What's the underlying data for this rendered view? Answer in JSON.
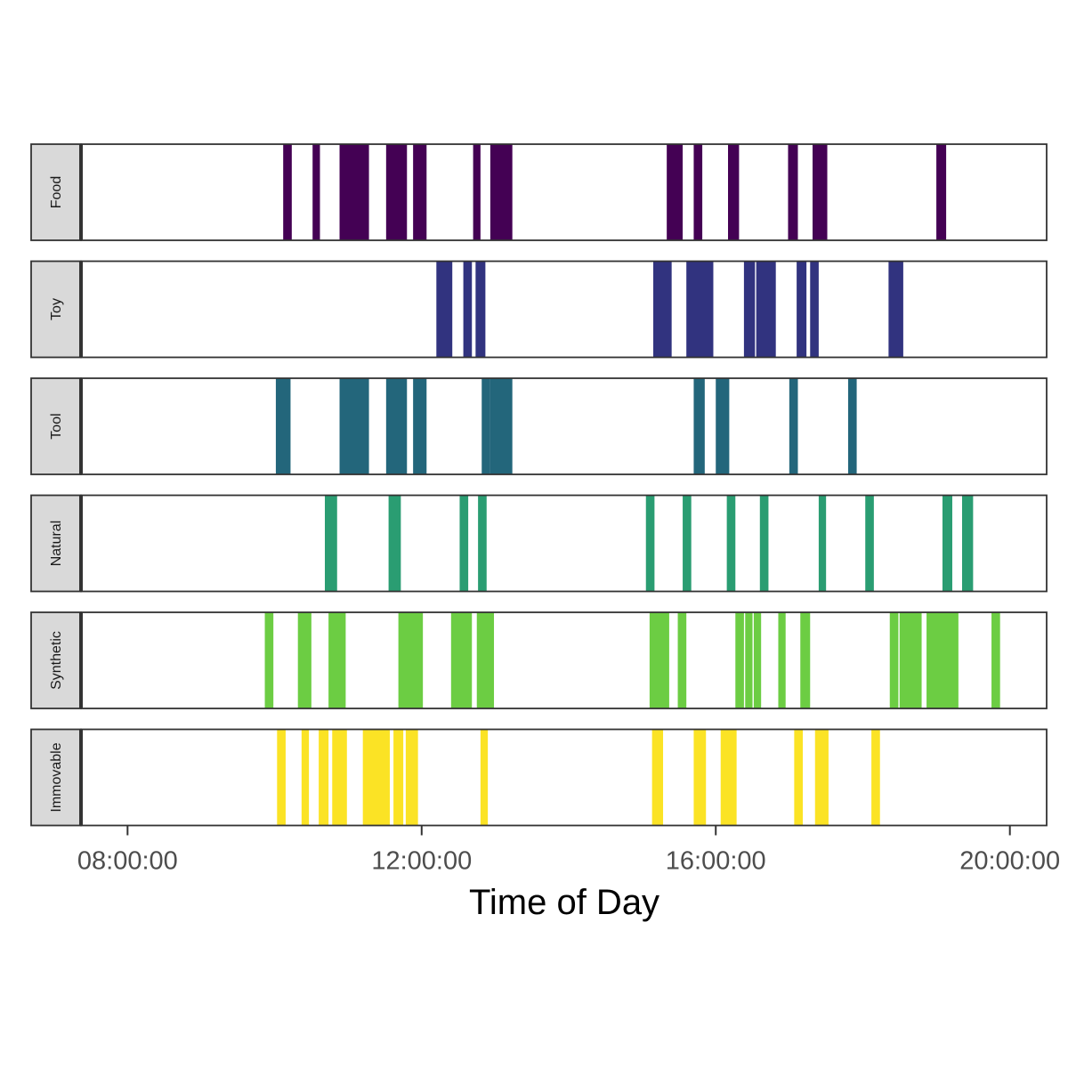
{
  "chart_data": {
    "type": "timeline",
    "title": "",
    "xlabel": "Time of Day",
    "ylabel": "",
    "x_unit": "hours",
    "xlim": [
      "07:22:00",
      "20:30:00"
    ],
    "x_ticks": [
      {
        "label": "08:00:00",
        "value": 8
      },
      {
        "label": "12:00:00",
        "value": 12
      },
      {
        "label": "16:00:00",
        "value": 16
      },
      {
        "label": "20:00:00",
        "value": 20
      }
    ],
    "grid": false,
    "legend": "none",
    "facets": [
      {
        "name": "Food",
        "color": "#440154",
        "intervals": [
          [
            "10:07:00",
            "10:14:00"
          ],
          [
            "10:31:00",
            "10:37:00"
          ],
          [
            "10:53:00",
            "11:17:00"
          ],
          [
            "11:31:00",
            "11:48:00"
          ],
          [
            "11:53:00",
            "12:04:00"
          ],
          [
            "12:42:00",
            "12:48:00"
          ],
          [
            "12:56:00",
            "13:14:00"
          ],
          [
            "15:20:00",
            "15:33:00"
          ],
          [
            "15:42:00",
            "15:49:00"
          ],
          [
            "16:10:00",
            "16:19:00"
          ],
          [
            "16:59:00",
            "17:07:00"
          ],
          [
            "17:19:00",
            "17:31:00"
          ],
          [
            "19:00:00",
            "19:08:00"
          ]
        ]
      },
      {
        "name": "Toy",
        "color": "#31337F",
        "intervals": [
          [
            "12:12:00",
            "12:25:00"
          ],
          [
            "12:34:00",
            "12:41:00"
          ],
          [
            "12:44:00",
            "12:52:00"
          ],
          [
            "15:09:00",
            "15:24:00"
          ],
          [
            "15:36:00",
            "15:58:00"
          ],
          [
            "16:23:00",
            "16:32:00"
          ],
          [
            "16:33:00",
            "16:49:00"
          ],
          [
            "17:06:00",
            "17:14:00"
          ],
          [
            "17:17:00",
            "17:24:00"
          ],
          [
            "18:21:00",
            "18:33:00"
          ]
        ]
      },
      {
        "name": "Tool",
        "color": "#23667B",
        "intervals": [
          [
            "10:01:00",
            "10:13:00"
          ],
          [
            "10:53:00",
            "11:17:00"
          ],
          [
            "11:31:00",
            "11:48:00"
          ],
          [
            "11:53:00",
            "12:04:00"
          ],
          [
            "12:49:00",
            "12:56:00"
          ],
          [
            "12:56:00",
            "13:14:00"
          ],
          [
            "15:42:00",
            "15:51:00"
          ],
          [
            "16:00:00",
            "16:11:00"
          ],
          [
            "17:00:00",
            "17:07:00"
          ],
          [
            "17:48:00",
            "17:55:00"
          ]
        ]
      },
      {
        "name": "Natural",
        "color": "#2A9D72",
        "intervals": [
          [
            "10:41:00",
            "10:51:00"
          ],
          [
            "11:33:00",
            "11:43:00"
          ],
          [
            "12:31:00",
            "12:38:00"
          ],
          [
            "12:46:00",
            "12:53:00"
          ],
          [
            "15:03:00",
            "15:10:00"
          ],
          [
            "15:33:00",
            "15:40:00"
          ],
          [
            "16:09:00",
            "16:16:00"
          ],
          [
            "16:36:00",
            "16:43:00"
          ],
          [
            "17:24:00",
            "17:30:00"
          ],
          [
            "18:02:00",
            "18:09:00"
          ],
          [
            "19:05:00",
            "19:13:00"
          ],
          [
            "19:21:00",
            "19:30:00"
          ]
        ]
      },
      {
        "name": "Synthetic",
        "color": "#6CCD43",
        "intervals": [
          [
            "09:52:00",
            "09:59:00"
          ],
          [
            "10:19:00",
            "10:30:00"
          ],
          [
            "10:44:00",
            "10:58:00"
          ],
          [
            "11:41:00",
            "12:01:00"
          ],
          [
            "12:24:00",
            "12:41:00"
          ],
          [
            "12:45:00",
            "12:59:00"
          ],
          [
            "15:06:00",
            "15:22:00"
          ],
          [
            "15:29:00",
            "15:36:00"
          ],
          [
            "16:16:00",
            "16:23:00"
          ],
          [
            "16:24:00",
            "16:30:00"
          ],
          [
            "16:31:00",
            "16:37:00"
          ],
          [
            "16:51:00",
            "16:57:00"
          ],
          [
            "17:09:00",
            "17:17:00"
          ],
          [
            "18:22:00",
            "18:29:00"
          ],
          [
            "18:30:00",
            "18:48:00"
          ],
          [
            "18:52:00",
            "19:18:00"
          ],
          [
            "19:45:00",
            "19:52:00"
          ]
        ]
      },
      {
        "name": "Immovable",
        "color": "#FBE325",
        "intervals": [
          [
            "10:02:00",
            "10:09:00"
          ],
          [
            "10:22:00",
            "10:28:00"
          ],
          [
            "10:36:00",
            "10:44:00"
          ],
          [
            "10:47:00",
            "10:59:00"
          ],
          [
            "11:12:00",
            "11:34:00"
          ],
          [
            "11:37:00",
            "11:45:00"
          ],
          [
            "11:47:00",
            "11:57:00"
          ],
          [
            "12:48:00",
            "12:54:00"
          ],
          [
            "15:08:00",
            "15:17:00"
          ],
          [
            "15:42:00",
            "15:52:00"
          ],
          [
            "16:04:00",
            "16:17:00"
          ],
          [
            "17:04:00",
            "17:11:00"
          ],
          [
            "17:21:00",
            "17:32:00"
          ],
          [
            "18:07:00",
            "18:14:00"
          ]
        ]
      }
    ]
  }
}
